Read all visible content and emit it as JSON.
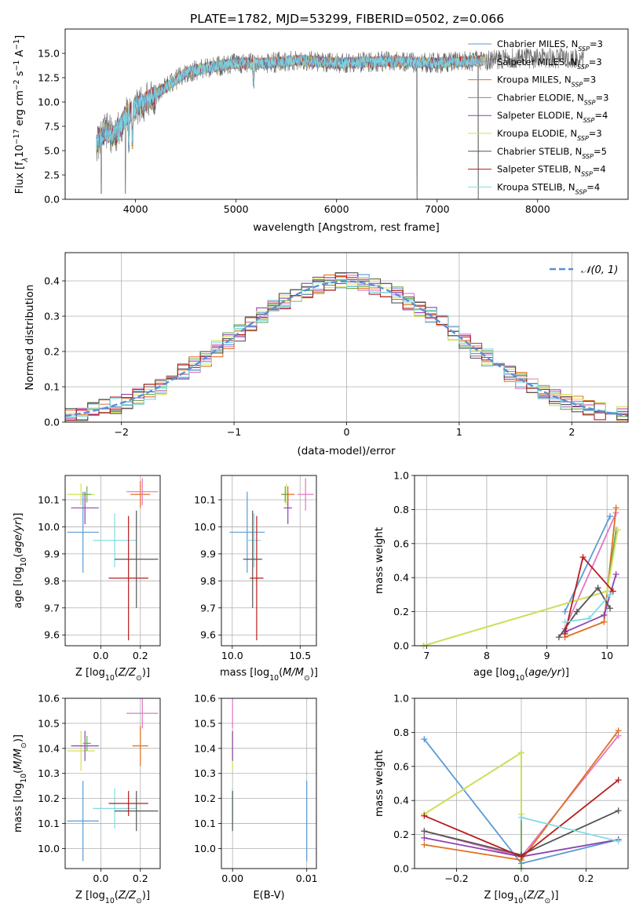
{
  "title": "PLATE=1782, MJD=53299, FIBERID=0502, z=0.066",
  "colors": {
    "chabrier_miles": "#5a9bd5",
    "salpeter_miles": "#e377c2",
    "kroupa_miles": "#e07020",
    "chabrier_elodie": "#6aa84f",
    "salpeter_elodie": "#8e44ad",
    "kroupa_elodie": "#d4e157",
    "chabrier_stelib": "#555555",
    "salpeter_stelib": "#b71c1c",
    "kroupa_stelib": "#7fdbe3",
    "gaussian": "#5b8ed6",
    "grid": "#b0b0b0"
  },
  "chart_data": [
    {
      "type": "line",
      "xlabel": "wavelength [Angstrom, rest frame]",
      "ylabel": "Flux [f$_\\lambda$10$^{-17}$ erg cm$^{-2}$ s$^{-1}$ A$^{-1}$]",
      "ylabel_parts": [
        "Flux [f",
        "λ",
        "10",
        "−17",
        " erg cm",
        "−2",
        " s",
        "−1",
        " A",
        "−1",
        "]"
      ],
      "xlim": [
        3300,
        8900
      ],
      "ylim": [
        0,
        17.5
      ],
      "xticks": [
        4000,
        5000,
        6000,
        7000,
        8000
      ],
      "yticks": [
        0.0,
        2.5,
        5.0,
        7.5,
        10.0,
        12.5,
        15.0
      ],
      "legend_position": "right",
      "spectrum_shape": {
        "x": [
          3600,
          3700,
          3800,
          3900,
          4000,
          4100,
          4300,
          4500,
          4700,
          5000,
          5300,
          5600,
          6000,
          6500,
          7000,
          7500,
          7700
        ],
        "y": [
          5.5,
          7.0,
          6.5,
          8.5,
          9.5,
          10.0,
          11.5,
          13.0,
          13.5,
          14.0,
          14.0,
          14.3,
          14.0,
          14.2,
          14.0,
          14.3,
          14.5
        ]
      },
      "series": [
        {
          "name": "Chabrier MILES, N$_{SSP}$=3",
          "label_main": "Chabrier MILES, N",
          "label_sub": "SSP",
          "label_tail": "=3",
          "color": "#5a9bd5"
        },
        {
          "name": "Salpeter MILES, N$_{SSP}$=3",
          "label_main": "Salpeter MILES, N",
          "label_sub": "SSP",
          "label_tail": "=3",
          "color": "#e377c2"
        },
        {
          "name": "Kroupa MILES, N$_{SSP}$=3",
          "label_main": "Kroupa MILES, N",
          "label_sub": "SSP",
          "label_tail": "=3",
          "color": "#e07020"
        },
        {
          "name": "Chabrier ELODIE, N$_{SSP}$=3",
          "label_main": "Chabrier ELODIE, N",
          "label_sub": "SSP",
          "label_tail": "=3",
          "color": "#6aa84f"
        },
        {
          "name": "Salpeter ELODIE, N$_{SSP}$=4",
          "label_main": "Salpeter ELODIE, N",
          "label_sub": "SSP",
          "label_tail": "=4",
          "color": "#8e44ad"
        },
        {
          "name": "Kroupa ELODIE, N$_{SSP}$=3",
          "label_main": "Kroupa ELODIE, N",
          "label_sub": "SSP",
          "label_tail": "=3",
          "color": "#d4e157"
        },
        {
          "name": "Chabrier STELIB, N$_{SSP}$=5",
          "label_main": "Chabrier STELIB, N",
          "label_sub": "SSP",
          "label_tail": "=5",
          "color": "#555555"
        },
        {
          "name": "Salpeter STELIB, N$_{SSP}$=4",
          "label_main": "Salpeter STELIB, N",
          "label_sub": "SSP",
          "label_tail": "=4",
          "color": "#b71c1c"
        },
        {
          "name": "Kroupa STELIB, N$_{SSP}$=4",
          "label_main": "Kroupa STELIB, N",
          "label_sub": "SSP",
          "label_tail": "=4",
          "color": "#7fdbe3"
        }
      ]
    },
    {
      "type": "line",
      "xlabel": "(data-model)/error",
      "ylabel": "Normed distribution",
      "xlim": [
        -2.5,
        2.5
      ],
      "ylim": [
        0,
        0.48
      ],
      "xticks": [
        -2,
        -1,
        0,
        1,
        2
      ],
      "xtick_labels": [
        "−2",
        "−1",
        "0",
        "1",
        "2"
      ],
      "yticks": [
        0.0,
        0.1,
        0.2,
        0.3,
        0.4
      ],
      "grid": true,
      "legend_position": "top-right",
      "gaussian_label": "𝒩(0, 1)",
      "gaussian": {
        "mean": 0,
        "sigma": 1
      }
    },
    {
      "type": "scatter",
      "xlabel": "Z [log$_{10}$(Z/Z$_\\odot$)]",
      "ylabel": "age  [log$_{10}$(age/yr)]",
      "xlim": [
        -0.18,
        0.3
      ],
      "ylim": [
        9.56,
        10.19
      ],
      "xticks": [
        0.0,
        0.2
      ],
      "yticks": [
        9.6,
        9.7,
        9.8,
        9.9,
        10.0,
        10.1
      ],
      "grid": true,
      "points": [
        {
          "series": "Chabrier MILES",
          "x": -0.09,
          "y": 9.98,
          "xerr": 0.08,
          "yerr": 0.15
        },
        {
          "series": "Kroupa STELIB",
          "x": 0.07,
          "y": 9.95,
          "xerr": 0.11,
          "yerr": 0.1
        },
        {
          "series": "Chabrier STELIB",
          "x": 0.18,
          "y": 9.88,
          "xerr": 0.11,
          "yerr": 0.18
        },
        {
          "series": "Salpeter STELIB",
          "x": 0.14,
          "y": 9.81,
          "xerr": 0.1,
          "yerr": 0.23
        },
        {
          "series": "Kroupa ELODIE",
          "x": -0.1,
          "y": 10.12,
          "xerr": 0.07,
          "yerr": 0.04
        },
        {
          "series": "Salpeter ELODIE",
          "x": -0.08,
          "y": 10.07,
          "xerr": 0.07,
          "yerr": 0.06
        },
        {
          "series": "Kroupa MILES",
          "x": 0.2,
          "y": 10.12,
          "xerr": 0.05,
          "yerr": 0.05
        },
        {
          "series": "Salpeter MILES",
          "x": 0.21,
          "y": 10.13,
          "xerr": 0.08,
          "yerr": 0.05
        },
        {
          "series": "Chabrier ELODIE",
          "x": -0.07,
          "y": 10.12,
          "xerr": 0.02,
          "yerr": 0.03
        }
      ]
    },
    {
      "type": "scatter",
      "xlabel": "mass [log$_{10}$(M/M$_\\odot$)]",
      "ylabel": "",
      "xlim": [
        9.92,
        10.62
      ],
      "ylim": [
        9.56,
        10.19
      ],
      "xticks": [
        10.0,
        10.5
      ],
      "yticks": [
        9.6,
        9.7,
        9.8,
        9.9,
        10.0,
        10.1
      ],
      "grid": true,
      "points": [
        {
          "series": "Chabrier MILES",
          "x": 10.11,
          "y": 9.98,
          "xerr": 0.13,
          "yerr": 0.15
        },
        {
          "series": "Kroupa STELIB",
          "x": 10.16,
          "y": 9.95,
          "xerr": 0.05,
          "yerr": 0.1
        },
        {
          "series": "Chabrier STELIB",
          "x": 10.15,
          "y": 9.88,
          "xerr": 0.07,
          "yerr": 0.18
        },
        {
          "series": "Salpeter STELIB",
          "x": 10.18,
          "y": 9.81,
          "xerr": 0.05,
          "yerr": 0.23
        },
        {
          "series": "Kroupa ELODIE",
          "x": 10.4,
          "y": 10.12,
          "xerr": 0.03,
          "yerr": 0.04
        },
        {
          "series": "Salpeter ELODIE",
          "x": 10.41,
          "y": 10.07,
          "xerr": 0.03,
          "yerr": 0.06
        },
        {
          "series": "Kroupa MILES",
          "x": 10.41,
          "y": 10.12,
          "xerr": 0.05,
          "yerr": 0.03
        },
        {
          "series": "Salpeter MILES",
          "x": 10.54,
          "y": 10.12,
          "xerr": 0.06,
          "yerr": 0.06
        },
        {
          "series": "Chabrier ELODIE",
          "x": 10.39,
          "y": 10.12,
          "xerr": 0.02,
          "yerr": 0.03
        }
      ]
    },
    {
      "type": "line",
      "xlabel": "age  [log$_{10}$(age/yr)]",
      "ylabel": "mass weight",
      "xlim": [
        6.8,
        10.35
      ],
      "ylim": [
        0,
        1
      ],
      "xticks": [
        7,
        8,
        9,
        10
      ],
      "yticks": [
        0.0,
        0.2,
        0.4,
        0.6,
        0.8,
        1.0
      ],
      "grid": true,
      "series": [
        {
          "name": "Chabrier MILES",
          "x": [
            9.3,
            10.05
          ],
          "y": [
            0.2,
            0.76
          ]
        },
        {
          "name": "Salpeter MILES",
          "x": [
            9.3,
            10.15
          ],
          "y": [
            0.1,
            0.78
          ]
        },
        {
          "name": "Kroupa MILES",
          "x": [
            9.3,
            9.95,
            10.15
          ],
          "y": [
            0.05,
            0.14,
            0.81
          ]
        },
        {
          "name": "Chabrier ELODIE",
          "x": [
            6.95,
            10.0,
            10.15
          ],
          "y": [
            0.0,
            0.32,
            0.68
          ]
        },
        {
          "name": "Salpeter ELODIE",
          "x": [
            9.3,
            9.95,
            10.15
          ],
          "y": [
            0.08,
            0.18,
            0.42
          ]
        },
        {
          "name": "Kroupa ELODIE",
          "x": [
            6.95,
            10.0,
            10.18
          ],
          "y": [
            0.0,
            0.32,
            0.68
          ]
        },
        {
          "name": "Chabrier STELIB",
          "x": [
            9.2,
            9.5,
            9.85,
            10.05
          ],
          "y": [
            0.05,
            0.2,
            0.34,
            0.22
          ]
        },
        {
          "name": "Salpeter STELIB",
          "x": [
            9.3,
            9.6,
            10.1
          ],
          "y": [
            0.07,
            0.52,
            0.32
          ]
        },
        {
          "name": "Kroupa STELIB",
          "x": [
            9.3,
            9.7,
            10.05
          ],
          "y": [
            0.14,
            0.16,
            0.3
          ]
        }
      ]
    },
    {
      "type": "scatter",
      "xlabel": "Z [log$_{10}$(Z/Z$_\\odot$)]",
      "ylabel": "mass [log$_{10}$(M/M$_\\odot$)]",
      "xlim": [
        -0.18,
        0.3
      ],
      "ylim": [
        9.92,
        10.6
      ],
      "xticks": [
        0.0,
        0.2
      ],
      "yticks": [
        10.0,
        10.1,
        10.2,
        10.3,
        10.4,
        10.5,
        10.6
      ],
      "grid": true,
      "points": [
        {
          "series": "Chabrier MILES",
          "x": -0.09,
          "y": 10.11,
          "xerr": 0.08,
          "yerr": 0.16
        },
        {
          "series": "Kroupa STELIB",
          "x": 0.07,
          "y": 10.16,
          "xerr": 0.11,
          "yerr": 0.08
        },
        {
          "series": "Chabrier STELIB",
          "x": 0.18,
          "y": 10.15,
          "xerr": 0.11,
          "yerr": 0.08
        },
        {
          "series": "Salpeter STELIB",
          "x": 0.14,
          "y": 10.18,
          "xerr": 0.1,
          "yerr": 0.05
        },
        {
          "series": "Kroupa ELODIE",
          "x": -0.1,
          "y": 10.39,
          "xerr": 0.07,
          "yerr": 0.08
        },
        {
          "series": "Salpeter ELODIE",
          "x": -0.08,
          "y": 10.41,
          "xerr": 0.07,
          "yerr": 0.06
        },
        {
          "series": "Kroupa MILES",
          "x": 0.2,
          "y": 10.41,
          "xerr": 0.04,
          "yerr": 0.08
        },
        {
          "series": "Salpeter MILES",
          "x": 0.21,
          "y": 10.54,
          "xerr": 0.08,
          "yerr": 0.06
        },
        {
          "series": "Chabrier ELODIE",
          "x": -0.07,
          "y": 10.42,
          "xerr": 0.02,
          "yerr": 0.03
        }
      ]
    },
    {
      "type": "scatter",
      "xlabel": "E(B-V)",
      "ylabel": "",
      "xlim": [
        -0.0015,
        0.0113
      ],
      "ylim": [
        9.92,
        10.6
      ],
      "xticks": [
        0.0,
        0.01
      ],
      "xtick_labels": [
        "0.00",
        "0.01"
      ],
      "yticks": [
        10.0,
        10.1,
        10.2,
        10.3,
        10.4,
        10.5,
        10.6
      ],
      "grid": true,
      "points": [
        {
          "series": "Chabrier MILES",
          "x": 0.01,
          "y": 10.11,
          "yerr": 0.16
        },
        {
          "series": "Kroupa STELIB",
          "x": 0.0,
          "y": 10.16,
          "yerr": 0.08
        },
        {
          "series": "Chabrier STELIB",
          "x": 0.0,
          "y": 10.15,
          "yerr": 0.08
        },
        {
          "series": "Kroupa ELODIE",
          "x": 0.0,
          "y": 10.39,
          "yerr": 0.08
        },
        {
          "series": "Salpeter ELODIE",
          "x": 0.0,
          "y": 10.41,
          "yerr": 0.06
        },
        {
          "series": "Salpeter MILES",
          "x": 0.0,
          "y": 10.54,
          "yerr": 0.06
        }
      ]
    },
    {
      "type": "line",
      "xlabel": "Z [log$_{10}$(Z/Z$_\\odot$)]",
      "ylabel": "mass weight",
      "xlim": [
        -0.33,
        0.33
      ],
      "ylim": [
        0,
        1
      ],
      "xticks": [
        -0.2,
        0.0,
        0.2
      ],
      "xtick_labels": [
        "−0.2",
        "0.0",
        "0.2"
      ],
      "yticks": [
        0.0,
        0.2,
        0.4,
        0.6,
        0.8,
        1.0
      ],
      "grid": true,
      "series": [
        {
          "name": "Chabrier MILES",
          "x": [
            -0.3,
            0.0,
            0.3
          ],
          "y": [
            0.76,
            0.03,
            0.17
          ]
        },
        {
          "name": "Salpeter MILES",
          "x": [
            -0.3,
            0.0,
            0.3
          ],
          "y": [
            0.22,
            0.07,
            0.78
          ]
        },
        {
          "name": "Kroupa MILES",
          "x": [
            -0.3,
            0.0,
            0.3
          ],
          "y": [
            0.14,
            0.05,
            0.81
          ]
        },
        {
          "name": "Chabrier ELODIE",
          "x": [
            -0.3,
            0.0,
            0.0
          ],
          "y": [
            0.32,
            0.68,
            0.0
          ]
        },
        {
          "name": "Salpeter ELODIE",
          "x": [
            -0.3,
            0.0,
            0.3
          ],
          "y": [
            0.18,
            0.07,
            0.17
          ]
        },
        {
          "name": "Kroupa ELODIE",
          "x": [
            -0.3,
            0.0,
            0.0
          ],
          "y": [
            0.32,
            0.68,
            0.32
          ]
        },
        {
          "name": "Chabrier STELIB",
          "x": [
            -0.3,
            0.0,
            0.3
          ],
          "y": [
            0.22,
            0.08,
            0.34
          ]
        },
        {
          "name": "Salpeter STELIB",
          "x": [
            -0.3,
            0.0,
            0.3
          ],
          "y": [
            0.31,
            0.07,
            0.52
          ]
        },
        {
          "name": "Kroupa STELIB",
          "x": [
            0.0,
            0.3
          ],
          "y": [
            0.3,
            0.16
          ]
        }
      ]
    }
  ]
}
